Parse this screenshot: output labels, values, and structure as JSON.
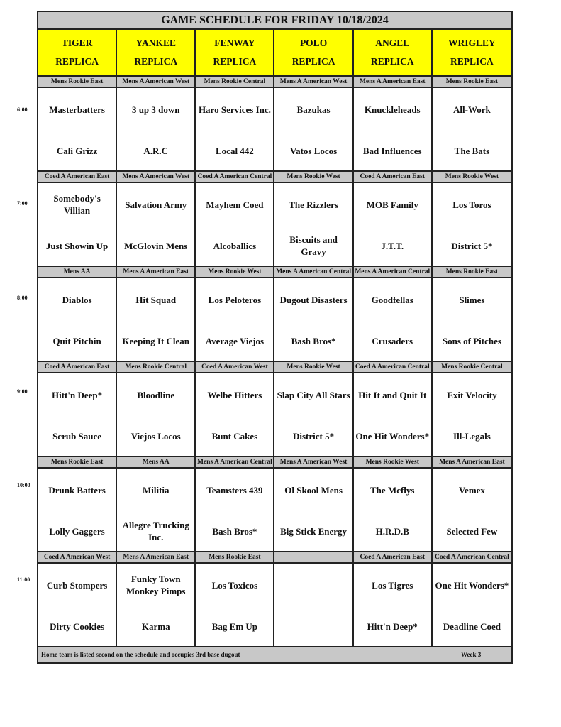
{
  "title": "GAME SCHEDULE FOR FRIDAY 10/18/2024",
  "fields": [
    {
      "name": "TIGER",
      "sub": "REPLICA"
    },
    {
      "name": "YANKEE",
      "sub": "REPLICA"
    },
    {
      "name": "FENWAY",
      "sub": "REPLICA"
    },
    {
      "name": "POLO",
      "sub": "REPLICA"
    },
    {
      "name": "ANGEL",
      "sub": "REPLICA"
    },
    {
      "name": "WRIGLEY",
      "sub": "REPLICA"
    }
  ],
  "slots": [
    {
      "time": "6:00",
      "games": [
        {
          "division": "Mens Rookie East",
          "away": "Masterbatters",
          "home": "Cali Grizz"
        },
        {
          "division": "Mens A American West",
          "away": "3 up 3 down",
          "home": "A.R.C"
        },
        {
          "division": "Mens Rookie Central",
          "away": "Haro Services Inc.",
          "home": "Local 442"
        },
        {
          "division": "Mens A American West",
          "away": "Bazukas",
          "home": "Vatos Locos"
        },
        {
          "division": "Mens A American East",
          "away": "Knuckleheads",
          "home": "Bad Influences"
        },
        {
          "division": "Mens Rookie East",
          "away": "All-Work",
          "home": "The Bats"
        }
      ]
    },
    {
      "time": "7:00",
      "games": [
        {
          "division": "Coed A American East",
          "away": "Somebody's Villian",
          "home": "Just Showin Up"
        },
        {
          "division": "Mens A American West",
          "away": "Salvation Army",
          "home": "McGlovin Mens"
        },
        {
          "division": "Coed A American Central",
          "away": "Mayhem Coed",
          "home": "Alcoballics"
        },
        {
          "division": "Mens Rookie West",
          "away": "The Rizzlers",
          "home": "Biscuits and Gravy"
        },
        {
          "division": "Coed A American East",
          "away": "MOB Family",
          "home": "J.T.T."
        },
        {
          "division": "Mens Rookie West",
          "away": "Los Toros",
          "home": "District 5*"
        }
      ]
    },
    {
      "time": "8:00",
      "games": [
        {
          "division": "Mens AA",
          "away": "Diablos",
          "home": "Quit Pitchin"
        },
        {
          "division": "Mens A American East",
          "away": "Hit Squad",
          "home": "Keeping It Clean"
        },
        {
          "division": "Mens Rookie West",
          "away": "Los Peloteros",
          "home": "Average Viejos"
        },
        {
          "division": "Mens A American Central",
          "away": "Dugout Disasters",
          "home": "Bash Bros*"
        },
        {
          "division": "Mens A American Central",
          "away": "Goodfellas",
          "home": "Crusaders"
        },
        {
          "division": "Mens Rookie East",
          "away": "Slimes",
          "home": "Sons of Pitches"
        }
      ]
    },
    {
      "time": "9:00",
      "games": [
        {
          "division": "Coed A American East",
          "away": "Hitt'n Deep*",
          "home": "Scrub Sauce"
        },
        {
          "division": "Mens Rookie Central",
          "away": "Bloodline",
          "home": "Viejos Locos"
        },
        {
          "division": "Coed A American West",
          "away": "Welbe Hitters",
          "home": "Bunt Cakes"
        },
        {
          "division": "Mens Rookie West",
          "away": "Slap City All Stars",
          "home": "District 5*"
        },
        {
          "division": "Coed A American Central",
          "away": "Hit It and Quit It",
          "home": "One Hit Wonders*"
        },
        {
          "division": "Mens Rookie Central",
          "away": "Exit Velocity",
          "home": "Ill-Legals"
        }
      ]
    },
    {
      "time": "10:00",
      "games": [
        {
          "division": "Mens Rookie East",
          "away": "Drunk Batters",
          "home": "Lolly Gaggers"
        },
        {
          "division": "Mens AA",
          "away": "Militia",
          "home": "Allegre Trucking Inc."
        },
        {
          "division": "Mens A American Central",
          "away": "Teamsters 439",
          "home": "Bash Bros*"
        },
        {
          "division": "Mens A American West",
          "away": "Ol Skool Mens",
          "home": "Big Stick Energy"
        },
        {
          "division": "Mens Rookie West",
          "away": "The Mcflys",
          "home": "H.R.D.B"
        },
        {
          "division": "Mens A American East",
          "away": "Vemex",
          "home": "Selected Few"
        }
      ]
    },
    {
      "time": "11:00",
      "games": [
        {
          "division": "Coed A American West",
          "away": "Curb Stompers",
          "home": "Dirty Cookies"
        },
        {
          "division": "Mens A American East",
          "away": "Funky Town Monkey Pimps",
          "home": "Karma"
        },
        {
          "division": "Mens Rookie East",
          "away": "Los Toxicos",
          "home": "Bag Em Up"
        },
        {
          "division": "",
          "away": "",
          "home": ""
        },
        {
          "division": "Coed A American East",
          "away": "Los Tigres",
          "home": "Hitt'n Deep*"
        },
        {
          "division": "Coed A American Central",
          "away": "One Hit Wonders*",
          "home": "Deadline Coed"
        }
      ]
    }
  ],
  "footer": {
    "note": "Home team is listed second on the schedule and occupies 3rd base dugout",
    "week": "Week 3"
  },
  "colors": {
    "header": "#ffff00",
    "band": "#c8c8c8",
    "border": "#222222"
  }
}
